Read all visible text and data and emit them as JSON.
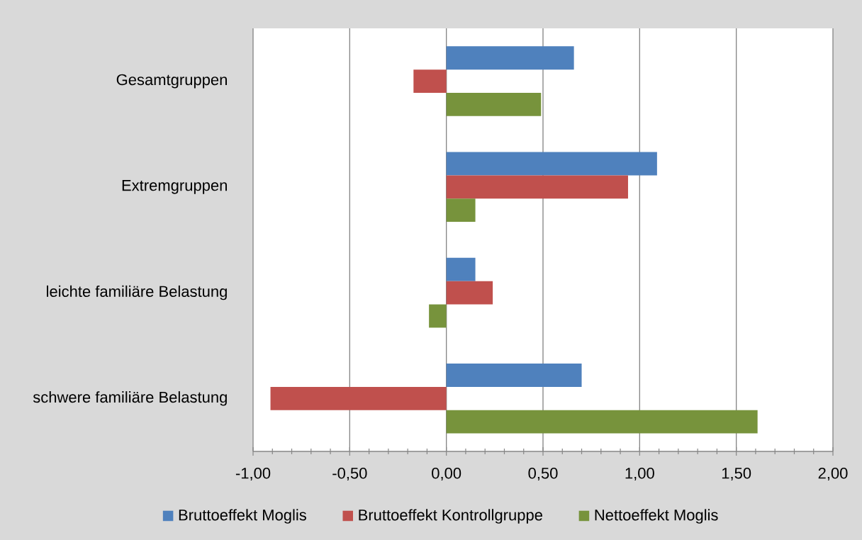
{
  "chart_data": {
    "type": "bar",
    "orientation": "horizontal",
    "categories": [
      "Gesamtgruppen",
      "Extremgruppen",
      "leichte familiäre Belastung",
      "schwere familiäre Belastung"
    ],
    "series": [
      {
        "name": "Bruttoeffekt Moglis",
        "color": "#4f81bd",
        "values": [
          0.66,
          1.09,
          0.15,
          0.7
        ]
      },
      {
        "name": "Bruttoeffekt Kontrollgruppe",
        "color": "#c0504d",
        "values": [
          -0.17,
          0.94,
          0.24,
          -0.91
        ]
      },
      {
        "name": "Nettoeffekt Moglis",
        "color": "#77933c",
        "values": [
          0.49,
          0.15,
          -0.09,
          1.61
        ]
      }
    ],
    "xlim": [
      -1,
      2
    ],
    "xticks": [
      {
        "value": -1,
        "label": "-1,00"
      },
      {
        "value": -0.9,
        "label": null
      },
      {
        "value": -0.8,
        "label": null
      },
      {
        "value": -0.7,
        "label": null
      },
      {
        "value": -0.6,
        "label": null
      },
      {
        "value": -0.5,
        "label": "-0,50"
      },
      {
        "value": -0.4,
        "label": null
      },
      {
        "value": -0.3,
        "label": null
      },
      {
        "value": -0.2,
        "label": null
      },
      {
        "value": -0.1,
        "label": null
      },
      {
        "value": 0,
        "label": "0,00"
      },
      {
        "value": 0.1,
        "label": null
      },
      {
        "value": 0.2,
        "label": null
      },
      {
        "value": 0.3,
        "label": null
      },
      {
        "value": 0.4,
        "label": null
      },
      {
        "value": 0.5,
        "label": "0,50"
      },
      {
        "value": 0.6,
        "label": null
      },
      {
        "value": 0.7,
        "label": null
      },
      {
        "value": 0.8,
        "label": null
      },
      {
        "value": 0.9,
        "label": null
      },
      {
        "value": 1,
        "label": "1,00"
      },
      {
        "value": 1.1,
        "label": null
      },
      {
        "value": 1.2,
        "label": null
      },
      {
        "value": 1.3,
        "label": null
      },
      {
        "value": 1.4,
        "label": null
      },
      {
        "value": 1.5,
        "label": "1,50"
      },
      {
        "value": 1.6,
        "label": null
      },
      {
        "value": 1.7,
        "label": null
      },
      {
        "value": 1.8,
        "label": null
      },
      {
        "value": 1.9,
        "label": null
      },
      {
        "value": 2,
        "label": "2,00"
      }
    ],
    "grid": "x",
    "legend": "bottom"
  }
}
